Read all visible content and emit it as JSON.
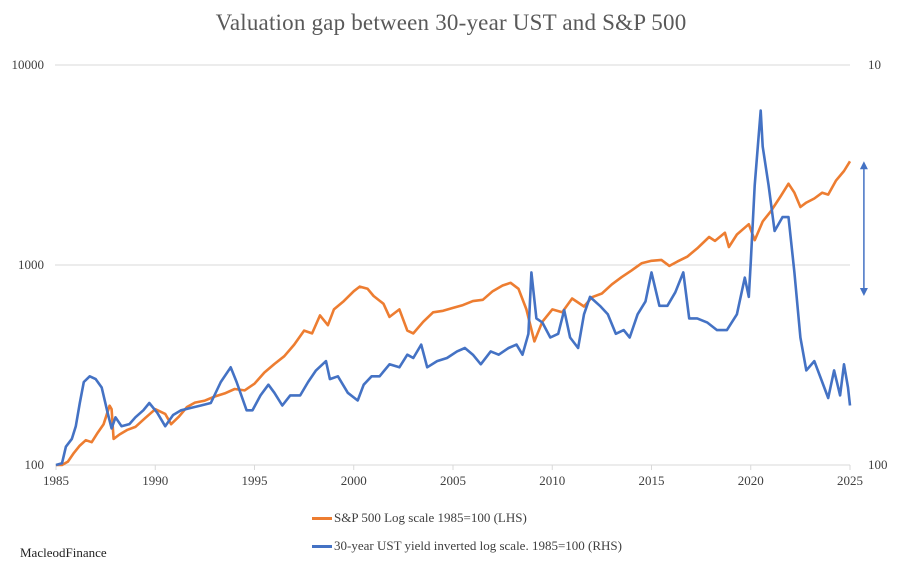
{
  "chart_data": {
    "type": "line",
    "title": "Valuation gap between 30-year UST and S&P 500",
    "xlabel": "",
    "ylabel": "",
    "x_ticks": [
      "1985",
      "1990",
      "1995",
      "2000",
      "2005",
      "2010",
      "2015",
      "2020",
      "2025"
    ],
    "xlim": [
      1985,
      2025
    ],
    "y_left": {
      "scale": "log",
      "range": [
        100,
        10000
      ],
      "ticks": [
        "100",
        "1000",
        "10000"
      ]
    },
    "y_right": {
      "scale": "log-inverted",
      "range": [
        100,
        10
      ],
      "ticks": [
        "100",
        "10"
      ]
    },
    "grid": true,
    "legend_position": "bottom",
    "annotation": "double-headed arrow marking the gap at 2025",
    "series": [
      {
        "name": "S&P 500 Log scale 1985=100 (LHS)",
        "axis": "left",
        "color": "#ED7D31",
        "points": [
          [
            1985.0,
            100
          ],
          [
            1985.3,
            100
          ],
          [
            1985.6,
            104
          ],
          [
            1985.9,
            115
          ],
          [
            1986.2,
            125
          ],
          [
            1986.5,
            133
          ],
          [
            1986.8,
            130
          ],
          [
            1987.1,
            145
          ],
          [
            1987.4,
            160
          ],
          [
            1987.7,
            198
          ],
          [
            1987.8,
            190
          ],
          [
            1987.9,
            135
          ],
          [
            1988.2,
            142
          ],
          [
            1988.6,
            150
          ],
          [
            1989.0,
            155
          ],
          [
            1989.5,
            172
          ],
          [
            1990.0,
            190
          ],
          [
            1990.5,
            180
          ],
          [
            1990.8,
            160
          ],
          [
            1991.2,
            175
          ],
          [
            1991.6,
            195
          ],
          [
            1992.0,
            205
          ],
          [
            1992.5,
            210
          ],
          [
            1993.0,
            220
          ],
          [
            1993.5,
            228
          ],
          [
            1994.0,
            240
          ],
          [
            1994.5,
            236
          ],
          [
            1995.0,
            255
          ],
          [
            1995.5,
            290
          ],
          [
            1996.0,
            320
          ],
          [
            1996.5,
            350
          ],
          [
            1997.0,
            400
          ],
          [
            1997.5,
            470
          ],
          [
            1997.9,
            455
          ],
          [
            1998.3,
            560
          ],
          [
            1998.7,
            500
          ],
          [
            1999.0,
            600
          ],
          [
            1999.5,
            660
          ],
          [
            2000.0,
            740
          ],
          [
            2000.3,
            780
          ],
          [
            2000.7,
            760
          ],
          [
            2001.0,
            700
          ],
          [
            2001.5,
            640
          ],
          [
            2001.8,
            550
          ],
          [
            2002.3,
            600
          ],
          [
            2002.7,
            470
          ],
          [
            2003.0,
            455
          ],
          [
            2003.5,
            520
          ],
          [
            2004.0,
            580
          ],
          [
            2004.5,
            590
          ],
          [
            2005.0,
            610
          ],
          [
            2005.5,
            630
          ],
          [
            2006.0,
            660
          ],
          [
            2006.5,
            670
          ],
          [
            2007.0,
            740
          ],
          [
            2007.5,
            790
          ],
          [
            2007.9,
            815
          ],
          [
            2008.3,
            760
          ],
          [
            2008.7,
            600
          ],
          [
            2009.1,
            415
          ],
          [
            2009.5,
            520
          ],
          [
            2010.0,
            600
          ],
          [
            2010.5,
            580
          ],
          [
            2011.0,
            680
          ],
          [
            2011.6,
            620
          ],
          [
            2012.0,
            690
          ],
          [
            2012.5,
            720
          ],
          [
            2013.0,
            800
          ],
          [
            2013.5,
            870
          ],
          [
            2014.0,
            940
          ],
          [
            2014.5,
            1020
          ],
          [
            2015.0,
            1050
          ],
          [
            2015.5,
            1060
          ],
          [
            2015.9,
            990
          ],
          [
            2016.3,
            1040
          ],
          [
            2016.8,
            1100
          ],
          [
            2017.3,
            1210
          ],
          [
            2017.9,
            1380
          ],
          [
            2018.2,
            1320
          ],
          [
            2018.7,
            1450
          ],
          [
            2018.9,
            1230
          ],
          [
            2019.3,
            1420
          ],
          [
            2019.9,
            1600
          ],
          [
            2020.2,
            1330
          ],
          [
            2020.6,
            1650
          ],
          [
            2021.0,
            1850
          ],
          [
            2021.5,
            2200
          ],
          [
            2021.9,
            2550
          ],
          [
            2022.2,
            2300
          ],
          [
            2022.5,
            1950
          ],
          [
            2022.8,
            2050
          ],
          [
            2023.2,
            2150
          ],
          [
            2023.6,
            2300
          ],
          [
            2023.9,
            2250
          ],
          [
            2024.3,
            2650
          ],
          [
            2024.7,
            2950
          ],
          [
            2025.0,
            3300
          ]
        ]
      },
      {
        "name": "30-year UST yield inverted log scale. 1985=100 (RHS)",
        "axis": "right",
        "color": "#4472C4",
        "points": [
          [
            1985.0,
            100
          ],
          [
            1985.3,
            99
          ],
          [
            1985.5,
            90
          ],
          [
            1985.8,
            86
          ],
          [
            1986.0,
            80
          ],
          [
            1986.2,
            70
          ],
          [
            1986.4,
            62
          ],
          [
            1986.7,
            60
          ],
          [
            1987.0,
            61
          ],
          [
            1987.3,
            64
          ],
          [
            1987.6,
            74
          ],
          [
            1987.8,
            81
          ],
          [
            1988.0,
            76
          ],
          [
            1988.3,
            80
          ],
          [
            1988.7,
            79
          ],
          [
            1989.0,
            76
          ],
          [
            1989.4,
            73
          ],
          [
            1989.7,
            70
          ],
          [
            1990.1,
            74
          ],
          [
            1990.5,
            80
          ],
          [
            1990.9,
            75
          ],
          [
            1991.3,
            73
          ],
          [
            1991.8,
            72
          ],
          [
            1992.3,
            71
          ],
          [
            1992.8,
            70
          ],
          [
            1993.3,
            62
          ],
          [
            1993.8,
            57
          ],
          [
            1994.1,
            62
          ],
          [
            1994.6,
            73
          ],
          [
            1994.9,
            73
          ],
          [
            1995.3,
            67
          ],
          [
            1995.7,
            63
          ],
          [
            1996.0,
            66
          ],
          [
            1996.4,
            71
          ],
          [
            1996.8,
            67
          ],
          [
            1997.3,
            67
          ],
          [
            1997.7,
            62
          ],
          [
            1998.1,
            58
          ],
          [
            1998.6,
            55
          ],
          [
            1998.8,
            61
          ],
          [
            1999.2,
            60
          ],
          [
            1999.7,
            66
          ],
          [
            2000.2,
            69
          ],
          [
            2000.5,
            63
          ],
          [
            2000.9,
            60
          ],
          [
            2001.3,
            60
          ],
          [
            2001.8,
            56
          ],
          [
            2002.3,
            57
          ],
          [
            2002.7,
            53
          ],
          [
            2003.0,
            54
          ],
          [
            2003.4,
            50
          ],
          [
            2003.7,
            57
          ],
          [
            2004.2,
            55
          ],
          [
            2004.7,
            54
          ],
          [
            2005.2,
            52
          ],
          [
            2005.6,
            51
          ],
          [
            2006.0,
            53
          ],
          [
            2006.4,
            56
          ],
          [
            2006.9,
            52
          ],
          [
            2007.3,
            53
          ],
          [
            2007.8,
            51
          ],
          [
            2008.2,
            50
          ],
          [
            2008.5,
            53
          ],
          [
            2008.8,
            47
          ],
          [
            2008.95,
            33
          ],
          [
            2009.2,
            43
          ],
          [
            2009.5,
            44
          ],
          [
            2009.9,
            48
          ],
          [
            2010.3,
            47
          ],
          [
            2010.6,
            41
          ],
          [
            2010.9,
            48
          ],
          [
            2011.3,
            51
          ],
          [
            2011.6,
            42
          ],
          [
            2011.9,
            38
          ],
          [
            2012.4,
            40
          ],
          [
            2012.8,
            42
          ],
          [
            2013.2,
            47
          ],
          [
            2013.6,
            46
          ],
          [
            2013.9,
            48
          ],
          [
            2014.3,
            42
          ],
          [
            2014.7,
            39
          ],
          [
            2015.0,
            33
          ],
          [
            2015.4,
            40
          ],
          [
            2015.8,
            40
          ],
          [
            2016.2,
            37
          ],
          [
            2016.6,
            33
          ],
          [
            2016.9,
            43
          ],
          [
            2017.3,
            43
          ],
          [
            2017.8,
            44
          ],
          [
            2018.3,
            46
          ],
          [
            2018.8,
            46
          ],
          [
            2019.3,
            42
          ],
          [
            2019.7,
            34
          ],
          [
            2019.9,
            38
          ],
          [
            2020.0,
            31
          ],
          [
            2020.2,
            20
          ],
          [
            2020.4,
            15
          ],
          [
            2020.5,
            13
          ],
          [
            2020.6,
            16
          ],
          [
            2020.9,
            20
          ],
          [
            2021.2,
            26
          ],
          [
            2021.6,
            24
          ],
          [
            2021.9,
            24
          ],
          [
            2022.2,
            33
          ],
          [
            2022.5,
            48
          ],
          [
            2022.8,
            58
          ],
          [
            2023.2,
            55
          ],
          [
            2023.6,
            62
          ],
          [
            2023.9,
            68
          ],
          [
            2024.2,
            58
          ],
          [
            2024.5,
            67
          ],
          [
            2024.7,
            56
          ],
          [
            2024.9,
            64
          ],
          [
            2025.0,
            71
          ]
        ]
      }
    ]
  },
  "legend": {
    "items": [
      {
        "label": "S&P 500 Log scale 1985=100 (LHS)",
        "color": "#ED7D31"
      },
      {
        "label": "30-year UST yield inverted log scale. 1985=100 (RHS)",
        "color": "#4472C4"
      }
    ]
  },
  "credit": "MacleodFinance",
  "colors": {
    "grid": "#D9D9D9",
    "arrow": "#4472C4"
  },
  "gap_arrow": {
    "year": 2025.7,
    "from_lhs_value": 3300,
    "to_lhs_value": 700
  }
}
